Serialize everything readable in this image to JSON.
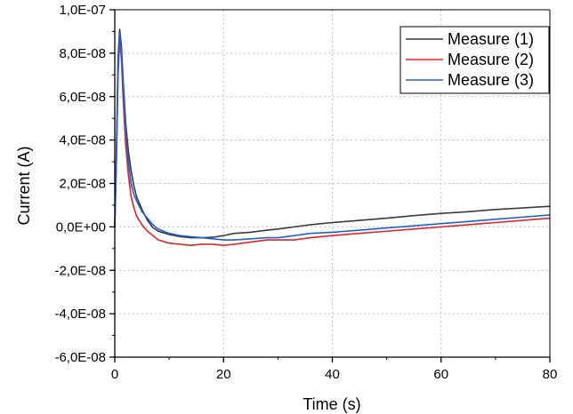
{
  "chart_data": {
    "type": "line",
    "xlabel": "Time (s)",
    "ylabel": "Current (A)",
    "xlim": [
      0,
      80
    ],
    "ylim": [
      -6e-08,
      1e-07
    ],
    "x_ticks": [
      0,
      20,
      40,
      60,
      80
    ],
    "x_tick_labels": [
      "0",
      "20",
      "40",
      "60",
      "80"
    ],
    "y_ticks": [
      1e-07,
      8e-08,
      6e-08,
      4e-08,
      2e-08,
      0,
      -2e-08,
      -4e-08,
      -6e-08
    ],
    "y_tick_labels": [
      "1,0E-07",
      "8,0E-08",
      "6,0E-08",
      "4,0E-08",
      "2,0E-08",
      "0,0E+00",
      "-2,0E-08",
      "-4,0E-08",
      "-6,0E-08"
    ],
    "grid": "dotted",
    "legend_position": "top-right",
    "series": [
      {
        "name": "Measure (1)",
        "color": "#3a3a3a",
        "points": [
          [
            0,
            0
          ],
          [
            0.3,
            3.5e-08
          ],
          [
            0.6,
            7.8e-08
          ],
          [
            0.9,
            9.1e-08
          ],
          [
            1.2,
            8.4e-08
          ],
          [
            1.6,
            6.5e-08
          ],
          [
            2,
            4.8e-08
          ],
          [
            2.5,
            3.5e-08
          ],
          [
            3,
            2.6e-08
          ],
          [
            3.5,
            1.9e-08
          ],
          [
            4,
            1.4e-08
          ],
          [
            5,
            8e-09
          ],
          [
            6,
            3e-09
          ],
          [
            7,
            -3e-10
          ],
          [
            8,
            -2e-09
          ],
          [
            10,
            -3.5e-09
          ],
          [
            12,
            -4.5e-09
          ],
          [
            14,
            -5e-09
          ],
          [
            16,
            -5e-09
          ],
          [
            18,
            -4.8e-09
          ],
          [
            20,
            -4e-09
          ],
          [
            22,
            -3e-09
          ],
          [
            25,
            -2.5e-09
          ],
          [
            28,
            -1.5e-09
          ],
          [
            30,
            -1e-09
          ],
          [
            33,
            0
          ],
          [
            36,
            1e-09
          ],
          [
            40,
            2e-09
          ],
          [
            45,
            3e-09
          ],
          [
            50,
            4e-09
          ],
          [
            55,
            5.2e-09
          ],
          [
            60,
            6.2e-09
          ],
          [
            65,
            7e-09
          ],
          [
            70,
            8e-09
          ],
          [
            75,
            8.7e-09
          ],
          [
            80,
            9.5e-09
          ]
        ]
      },
      {
        "name": "Measure (2)",
        "color": "#e0242c",
        "points": [
          [
            0,
            0
          ],
          [
            0.3,
            3.2e-08
          ],
          [
            0.6,
            7e-08
          ],
          [
            0.9,
            8.6e-08
          ],
          [
            1.2,
            7.8e-08
          ],
          [
            1.6,
            5.6e-08
          ],
          [
            2,
            3.8e-08
          ],
          [
            2.5,
            2.4e-08
          ],
          [
            3,
            1.4e-08
          ],
          [
            3.5,
            9e-09
          ],
          [
            4,
            5e-09
          ],
          [
            5,
            1e-09
          ],
          [
            6,
            -2e-09
          ],
          [
            7,
            -4e-09
          ],
          [
            8,
            -6e-09
          ],
          [
            10,
            -7.5e-09
          ],
          [
            12,
            -8e-09
          ],
          [
            14,
            -8.5e-09
          ],
          [
            16,
            -8e-09
          ],
          [
            18,
            -8e-09
          ],
          [
            20,
            -8.5e-09
          ],
          [
            22,
            -8e-09
          ],
          [
            25,
            -7e-09
          ],
          [
            28,
            -6e-09
          ],
          [
            30,
            -6e-09
          ],
          [
            33,
            -6e-09
          ],
          [
            36,
            -5e-09
          ],
          [
            40,
            -4e-09
          ],
          [
            45,
            -3e-09
          ],
          [
            50,
            -2e-09
          ],
          [
            55,
            -1e-09
          ],
          [
            60,
            0
          ],
          [
            65,
            1e-09
          ],
          [
            70,
            2e-09
          ],
          [
            75,
            3e-09
          ],
          [
            80,
            4e-09
          ]
        ]
      },
      {
        "name": "Measure (3)",
        "color": "#1f5fd4",
        "points": [
          [
            0,
            0
          ],
          [
            0.3,
            3e-08
          ],
          [
            0.6,
            7.2e-08
          ],
          [
            0.9,
            8.9e-08
          ],
          [
            1.2,
            8.2e-08
          ],
          [
            1.6,
            6.2e-08
          ],
          [
            2,
            4.5e-08
          ],
          [
            2.5,
            3e-08
          ],
          [
            3,
            2e-08
          ],
          [
            3.5,
            1.5e-08
          ],
          [
            4,
            1.2e-08
          ],
          [
            5,
            7e-09
          ],
          [
            6,
            4e-09
          ],
          [
            7,
            1e-09
          ],
          [
            8,
            -1e-09
          ],
          [
            10,
            -3e-09
          ],
          [
            12,
            -4e-09
          ],
          [
            14,
            -4.5e-09
          ],
          [
            16,
            -5e-09
          ],
          [
            18,
            -5.5e-09
          ],
          [
            20,
            -6e-09
          ],
          [
            22,
            -6e-09
          ],
          [
            25,
            -5.5e-09
          ],
          [
            28,
            -5e-09
          ],
          [
            30,
            -5e-09
          ],
          [
            33,
            -4e-09
          ],
          [
            36,
            -3e-09
          ],
          [
            40,
            -2.5e-09
          ],
          [
            45,
            -1.5e-09
          ],
          [
            50,
            -5e-10
          ],
          [
            55,
            5e-10
          ],
          [
            60,
            1.5e-09
          ],
          [
            65,
            2.5e-09
          ],
          [
            70,
            3.5e-09
          ],
          [
            75,
            4.5e-09
          ],
          [
            80,
            5.5e-09
          ]
        ]
      }
    ]
  }
}
